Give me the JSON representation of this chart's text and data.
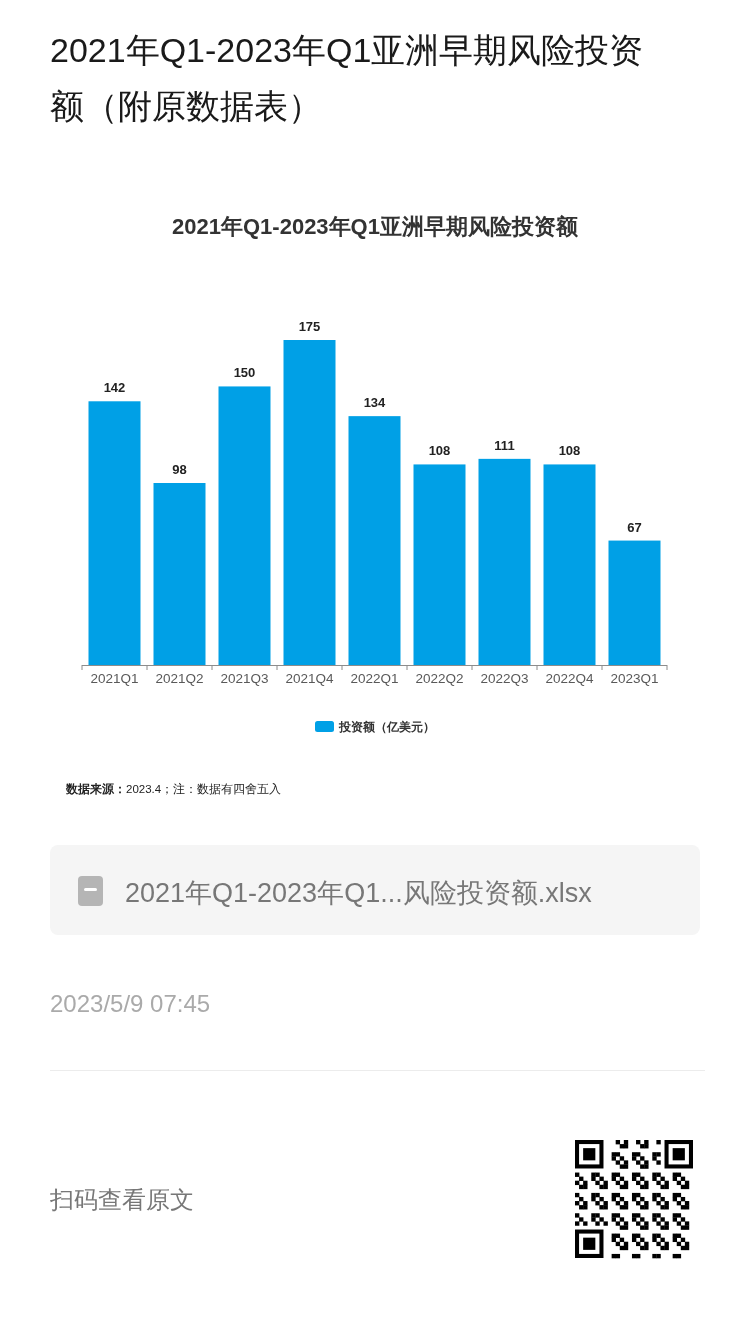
{
  "chart_data": {
    "type": "bar",
    "title": "2021年Q1-2023年Q1亚洲早期风险投资额（附原数据表）",
    "subtitle": "2021年Q1-2023年Q1亚洲早期风险投资额",
    "categories": [
      "2021Q1",
      "2021Q2",
      "2021Q3",
      "2021Q4",
      "2022Q1",
      "2022Q2",
      "2022Q3",
      "2022Q4",
      "2023Q1"
    ],
    "series": [
      {
        "name": "投资额（亿美元）",
        "color": "#00a0e6",
        "values": [
          142,
          98,
          150,
          175,
          134,
          108,
          111,
          108,
          67
        ]
      }
    ],
    "data_labels": true,
    "legend": "bottom",
    "annotations": [
      "**数据来源：**2023.4；注：数据有四舍五入",
      "2021年Q1-2023年Q1...风险投资额.xlsx",
      "2023/5/9 07:45",
      "扫码查看原文"
    ]
  }
}
